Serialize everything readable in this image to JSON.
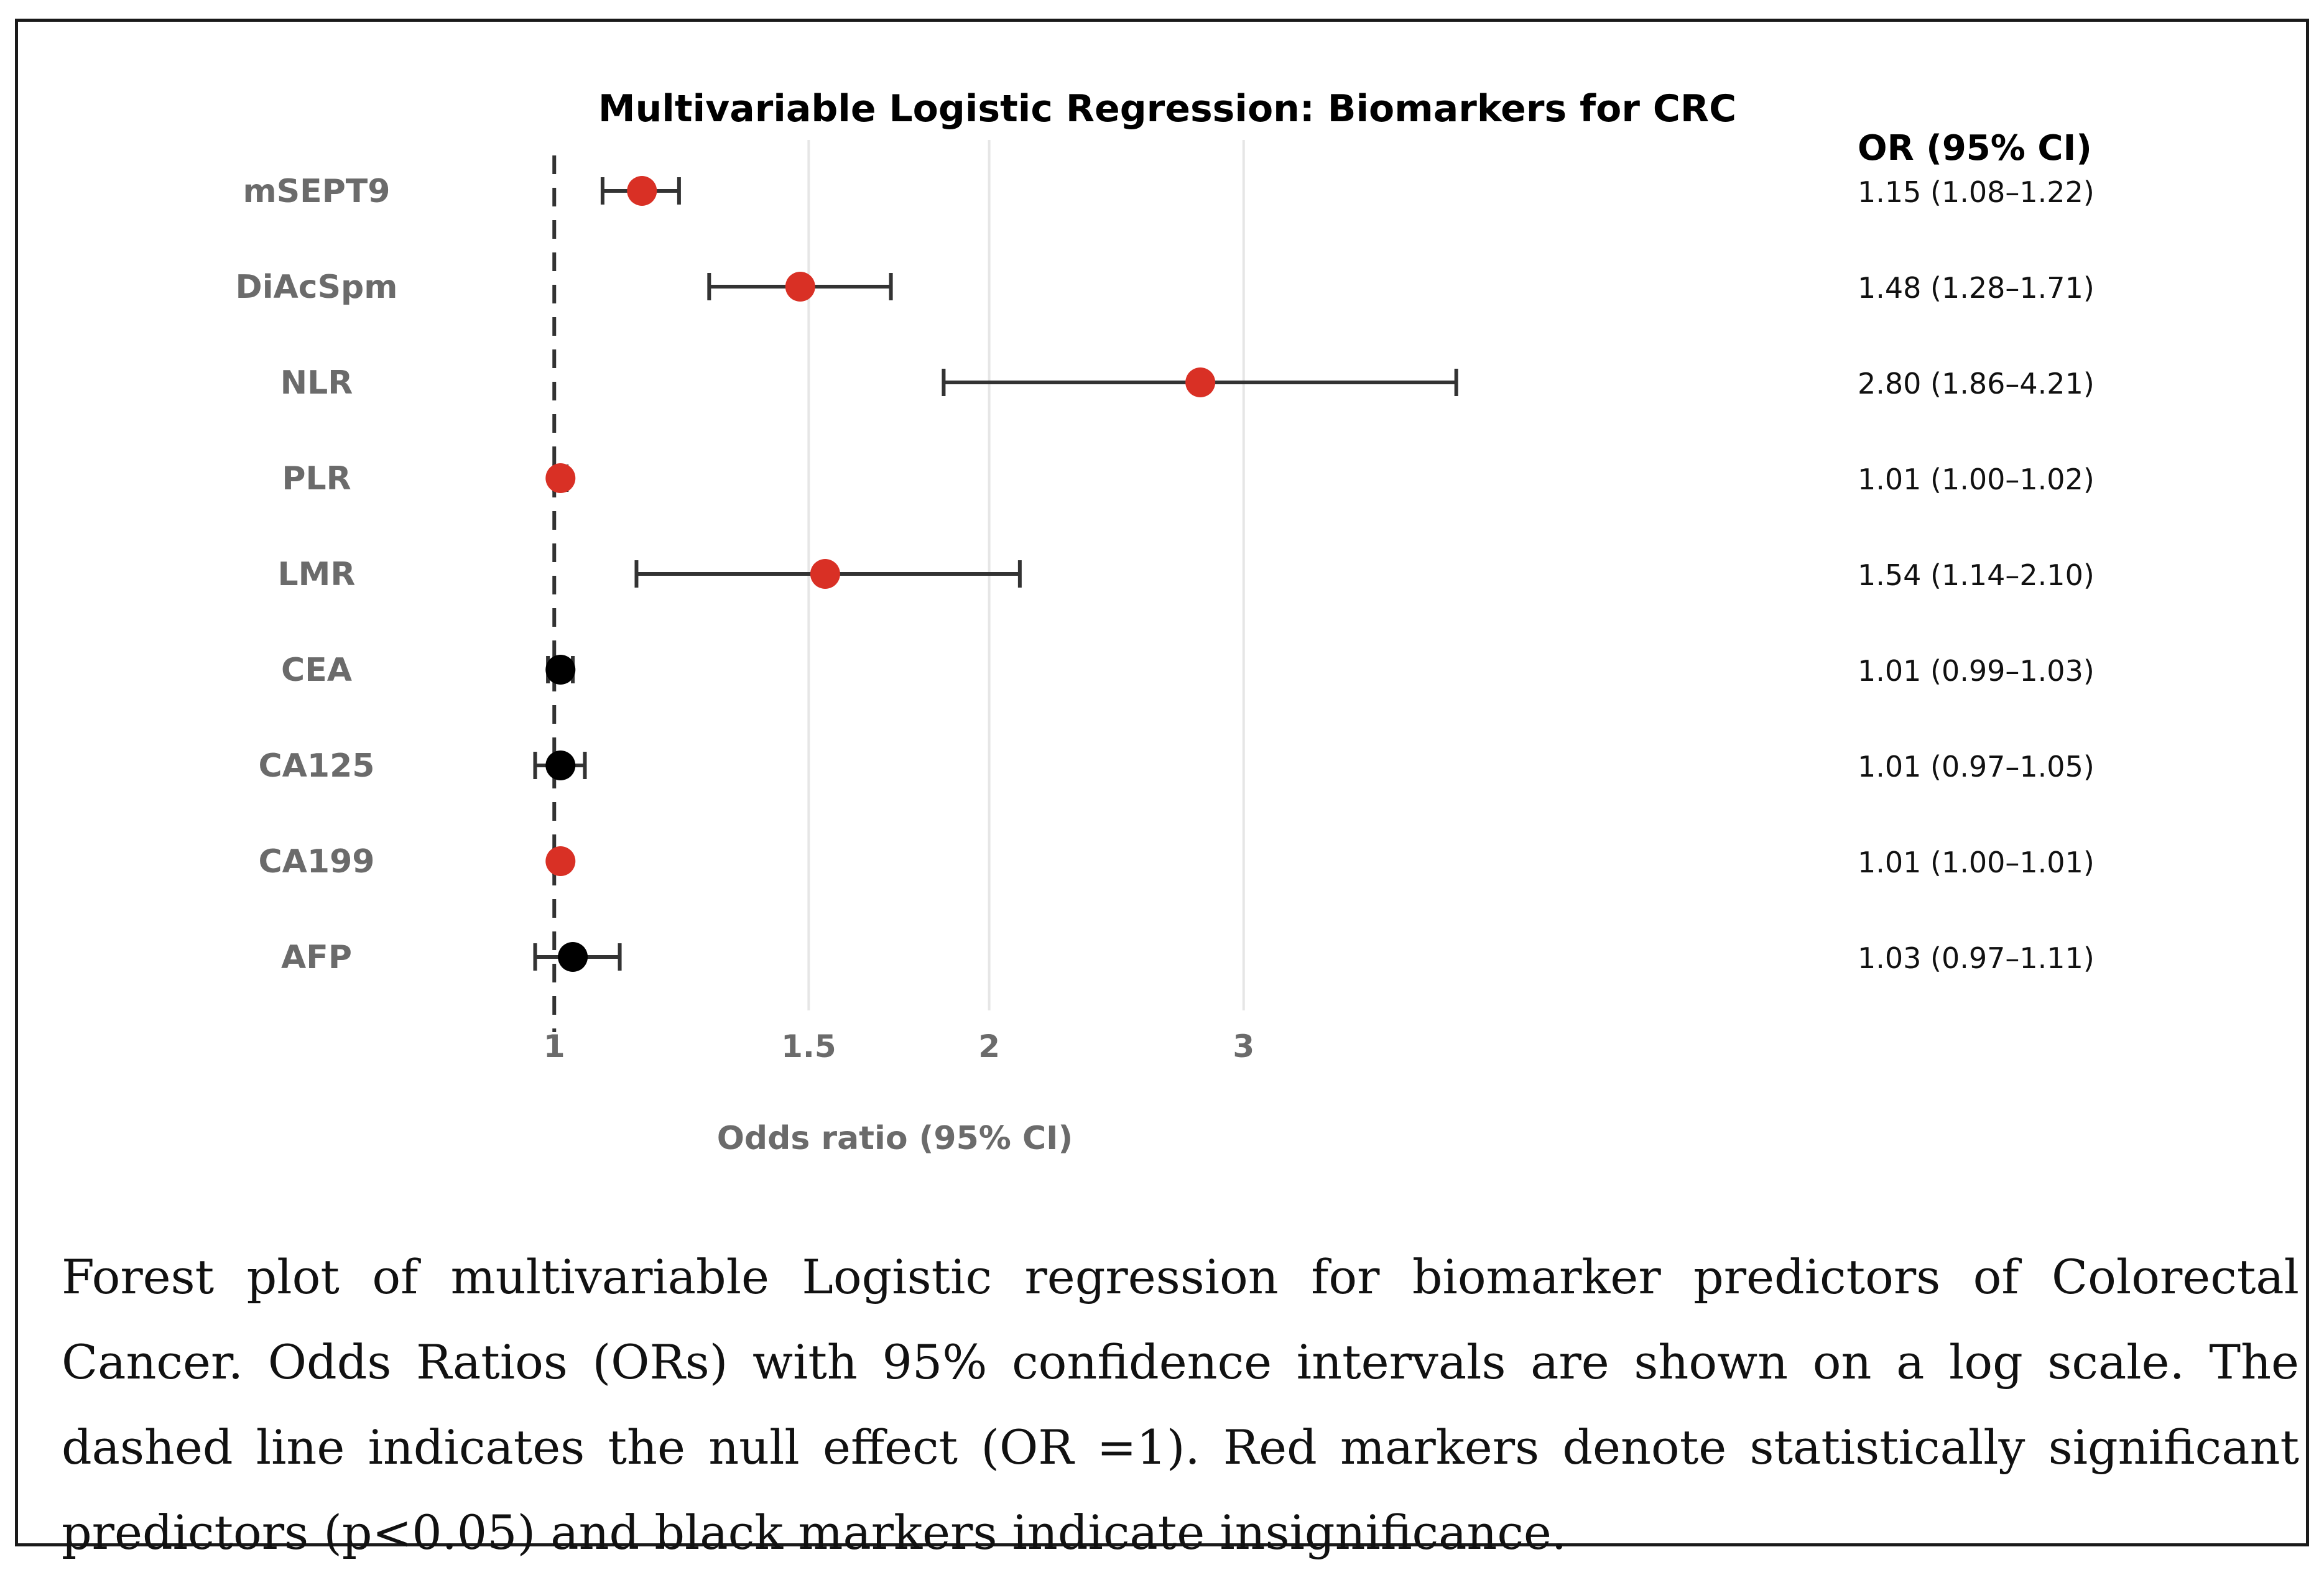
{
  "chart_data": {
    "type": "forest",
    "title": "Multivariable Logistic Regression: Biomarkers for CRC",
    "xlabel": "Odds ratio (95% CI)",
    "table_header": "OR (95% CI)",
    "x_scale": "log",
    "xlim": [
      0.985,
      4.8
    ],
    "x_ticks": [
      {
        "value": 1,
        "label": "1"
      },
      {
        "value": 1.5,
        "label": "1.5"
      },
      {
        "value": 2,
        "label": "2"
      },
      {
        "value": 3,
        "label": "3"
      }
    ],
    "null_value": 1,
    "grid": "vertical",
    "rows": [
      {
        "label": "mSEPT9",
        "or": 1.15,
        "lo": 1.08,
        "hi": 1.22,
        "significant": true,
        "text": "1.15 (1.08–1.22)"
      },
      {
        "label": "DiAcSpm",
        "or": 1.48,
        "lo": 1.28,
        "hi": 1.71,
        "significant": true,
        "text": "1.48 (1.28–1.71)"
      },
      {
        "label": "NLR",
        "or": 2.8,
        "lo": 1.86,
        "hi": 4.21,
        "significant": true,
        "text": "2.80 (1.86–4.21)"
      },
      {
        "label": "PLR",
        "or": 1.01,
        "lo": 1.0,
        "hi": 1.02,
        "significant": true,
        "text": "1.01 (1.00–1.02)"
      },
      {
        "label": "LMR",
        "or": 1.54,
        "lo": 1.14,
        "hi": 2.1,
        "significant": true,
        "text": "1.54 (1.14–2.10)"
      },
      {
        "label": "CEA",
        "or": 1.01,
        "lo": 0.99,
        "hi": 1.03,
        "significant": false,
        "text": "1.01 (0.99–1.03)"
      },
      {
        "label": "CA125",
        "or": 1.01,
        "lo": 0.97,
        "hi": 1.05,
        "significant": false,
        "text": "1.01 (0.97–1.05)"
      },
      {
        "label": "CA199",
        "or": 1.01,
        "lo": 1.0,
        "hi": 1.01,
        "significant": true,
        "text": "1.01 (1.00–1.01)"
      },
      {
        "label": "AFP",
        "or": 1.03,
        "lo": 0.97,
        "hi": 1.11,
        "significant": false,
        "text": "1.03 (0.97–1.11)"
      }
    ],
    "colors": {
      "significant": "#d93025",
      "nonsignificant": "#000000",
      "whisker": "#333333",
      "grid": "#e6e6e6",
      "label": "#6b6b6b"
    }
  },
  "caption": "Forest plot of multivariable Logistic regression for biomarker predictors of Colorectal Cancer. Odds Ratios (ORs) with 95% confidence intervals are shown on a log scale. The dashed line indicates the null effect (OR =1). Red markers denote statistically significant predictors (p<0.05) and black markers indicate insignificance."
}
